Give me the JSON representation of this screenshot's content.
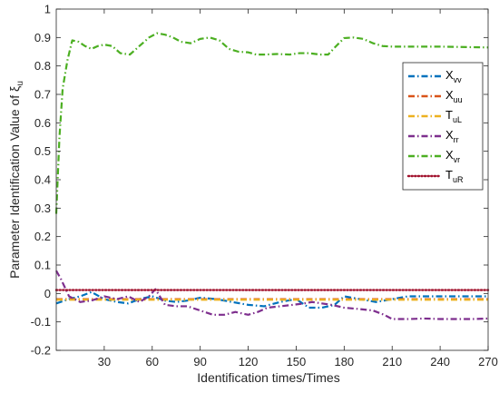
{
  "chart_data": {
    "type": "line",
    "xlabel": "Identification times/Times",
    "ylabel": "Parameter Identification Value of ξ",
    "ylabel_sub": "u",
    "xlim": [
      0,
      270
    ],
    "ylim": [
      -0.2,
      1
    ],
    "xticks": [
      30,
      60,
      90,
      120,
      150,
      180,
      210,
      240,
      270
    ],
    "yticks": [
      -0.2,
      -0.1,
      0,
      0.1,
      0.2,
      0.3,
      0.4,
      0.5,
      0.6,
      0.7,
      0.8,
      0.9,
      1
    ],
    "tick_labels_x": [
      "30",
      "60",
      "90",
      "120",
      "150",
      "180",
      "210",
      "240",
      "270"
    ],
    "tick_labels_y": [
      "-0.2",
      "-0.1",
      "0",
      "0.1",
      "0.2",
      "0.3",
      "0.4",
      "0.5",
      "0.6",
      "0.7",
      "0.8",
      "0.9",
      "1"
    ],
    "grid": false,
    "legend_position": "top-right",
    "series": [
      {
        "name": "X",
        "sub": "vv",
        "color": "#0072BD",
        "dash": "dashdot",
        "x": [
          0,
          8,
          15,
          22,
          30,
          38,
          45,
          52,
          60,
          68,
          75,
          82,
          90,
          100,
          110,
          120,
          130,
          140,
          150,
          158,
          166,
          174,
          180,
          190,
          200,
          210,
          220,
          240,
          260,
          270
        ],
        "y": [
          -0.035,
          -0.02,
          -0.01,
          0.005,
          -0.02,
          -0.03,
          -0.035,
          -0.02,
          -0.01,
          -0.025,
          -0.03,
          -0.025,
          -0.015,
          -0.02,
          -0.03,
          -0.04,
          -0.045,
          -0.03,
          -0.02,
          -0.05,
          -0.05,
          -0.04,
          -0.01,
          -0.02,
          -0.03,
          -0.02,
          -0.01,
          -0.01,
          -0.01,
          -0.01
        ]
      },
      {
        "name": "X",
        "sub": "uu",
        "color": "#D95319",
        "dash": "dashdot",
        "x": [
          0,
          270
        ],
        "y": [
          -0.02,
          -0.02
        ]
      },
      {
        "name": "T",
        "sub": "uL",
        "color": "#EDB120",
        "dash": "dashdot",
        "x": [
          0,
          270
        ],
        "y": [
          -0.022,
          -0.022
        ]
      },
      {
        "name": "X",
        "sub": "rr",
        "color": "#7E2F8E",
        "dash": "dashdot",
        "x": [
          0,
          3,
          8,
          15,
          22,
          30,
          38,
          45,
          52,
          58,
          62,
          68,
          75,
          82,
          90,
          98,
          105,
          112,
          120,
          126,
          132,
          140,
          148,
          155,
          160,
          166,
          172,
          180,
          190,
          198,
          205,
          210,
          220,
          230,
          240,
          250,
          260,
          270
        ],
        "y": [
          0.08,
          0.05,
          -0.01,
          -0.03,
          -0.025,
          -0.01,
          -0.02,
          -0.01,
          -0.03,
          -0.01,
          0.015,
          -0.04,
          -0.045,
          -0.045,
          -0.06,
          -0.075,
          -0.075,
          -0.065,
          -0.075,
          -0.065,
          -0.05,
          -0.045,
          -0.04,
          -0.035,
          -0.03,
          -0.035,
          -0.04,
          -0.05,
          -0.055,
          -0.06,
          -0.075,
          -0.09,
          -0.09,
          -0.088,
          -0.09,
          -0.09,
          -0.09,
          -0.088
        ]
      },
      {
        "name": "X",
        "sub": "vr",
        "color": "#4CAF22",
        "dash": "dashdot",
        "x": [
          0,
          2,
          4,
          7,
          10,
          14,
          18,
          22,
          26,
          30,
          35,
          40,
          46,
          52,
          58,
          63,
          68,
          73,
          78,
          84,
          90,
          96,
          102,
          108,
          114,
          120,
          125,
          130,
          138,
          146,
          152,
          158,
          165,
          170,
          175,
          180,
          186,
          192,
          198,
          204,
          210,
          240,
          270
        ],
        "y": [
          0.28,
          0.55,
          0.72,
          0.82,
          0.89,
          0.885,
          0.87,
          0.86,
          0.87,
          0.875,
          0.87,
          0.845,
          0.84,
          0.87,
          0.9,
          0.915,
          0.91,
          0.9,
          0.885,
          0.88,
          0.895,
          0.9,
          0.89,
          0.86,
          0.85,
          0.848,
          0.84,
          0.84,
          0.842,
          0.84,
          0.845,
          0.845,
          0.84,
          0.84,
          0.87,
          0.898,
          0.9,
          0.895,
          0.88,
          0.87,
          0.868,
          0.868,
          0.865
        ]
      },
      {
        "name": "T",
        "sub": "uR",
        "color": "#A2142F",
        "dash": "dotted",
        "x": [
          0,
          270
        ],
        "y": [
          0.012,
          0.012
        ]
      }
    ]
  }
}
